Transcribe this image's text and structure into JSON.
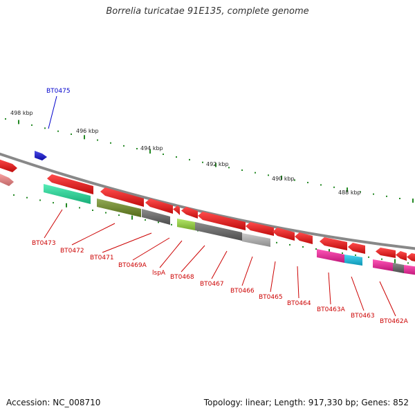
{
  "title": "Borrelia turicatae 91E135, complete genome",
  "footer": {
    "accession": "Accession: NC_008710",
    "summary": "Topology: linear; Length: 917,330 bp; Genes: 852"
  },
  "colors": {
    "backbone": "#888888",
    "ruler": "#228822",
    "forward_label": "#0000cc",
    "reverse_label": "#cc0000"
  },
  "ruler_labels": [
    "498 kbp",
    "496 kbp",
    "494 kbp",
    "492 kbp",
    "490 kbp",
    "488 kbp"
  ],
  "genes": {
    "forward": [
      {
        "label": "BT0475",
        "color": "#1010dd"
      }
    ],
    "reverse": [
      {
        "label": "BT0473",
        "color": "#20e8a0"
      },
      {
        "label": "BT0472",
        "color": "#ff1010"
      },
      {
        "label": "BT0471",
        "color": "#6f8f1f"
      },
      {
        "label": "BT0469A",
        "color": "#666666"
      },
      {
        "label": "lspA",
        "color": "#9be03a"
      },
      {
        "label": "BT0468",
        "color": "#666666"
      },
      {
        "label": "BT0467",
        "color": "#ff1010"
      },
      {
        "label": "BT0466",
        "color": "#bbbbbb"
      },
      {
        "label": "BT0465",
        "color": "#ff1010"
      },
      {
        "label": "BT0464",
        "color": "#ff1010"
      },
      {
        "label": "BT0463A",
        "color": "#ff1ea0"
      },
      {
        "label": "BT0463",
        "color": "#10c8f0"
      },
      {
        "label": "BT0462A",
        "color": "#ff1ea0"
      }
    ]
  }
}
